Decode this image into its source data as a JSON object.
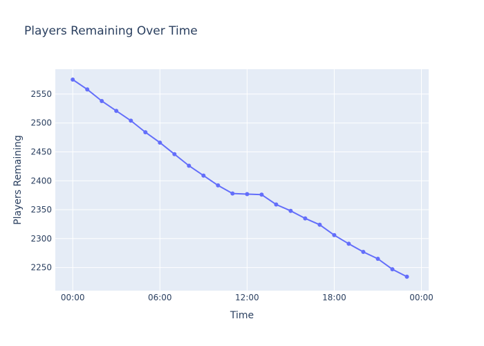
{
  "chart_data": {
    "type": "line",
    "title": "Players Remaining Over Time",
    "xlabel": "Time",
    "ylabel": "Players Remaining",
    "x_ticks": [
      "00:00",
      "06:00",
      "12:00",
      "18:00",
      "00:00"
    ],
    "x_tick_hours": [
      0,
      6,
      12,
      18,
      24
    ],
    "xlim": [
      -1.2,
      24.5
    ],
    "y_ticks": [
      2250,
      2300,
      2350,
      2400,
      2450,
      2500,
      2550
    ],
    "ylim": [
      2210,
      2593
    ],
    "grid": true,
    "colors": {
      "plot_bg": "#e5ecf6",
      "line": "#636efa"
    },
    "series": [
      {
        "x": [
          0,
          1,
          2,
          3,
          4,
          5,
          6,
          7,
          8,
          9,
          10,
          11,
          12,
          13,
          14,
          15,
          16,
          17,
          18,
          19,
          20,
          21,
          22,
          23
        ],
        "values": [
          2575,
          2558,
          2538,
          2521,
          2504,
          2484,
          2466,
          2446,
          2426,
          2409,
          2392,
          2378,
          2377,
          2376,
          2359,
          2348,
          2335,
          2324,
          2306,
          2291,
          2277,
          2265,
          2247,
          2234
        ]
      }
    ]
  }
}
